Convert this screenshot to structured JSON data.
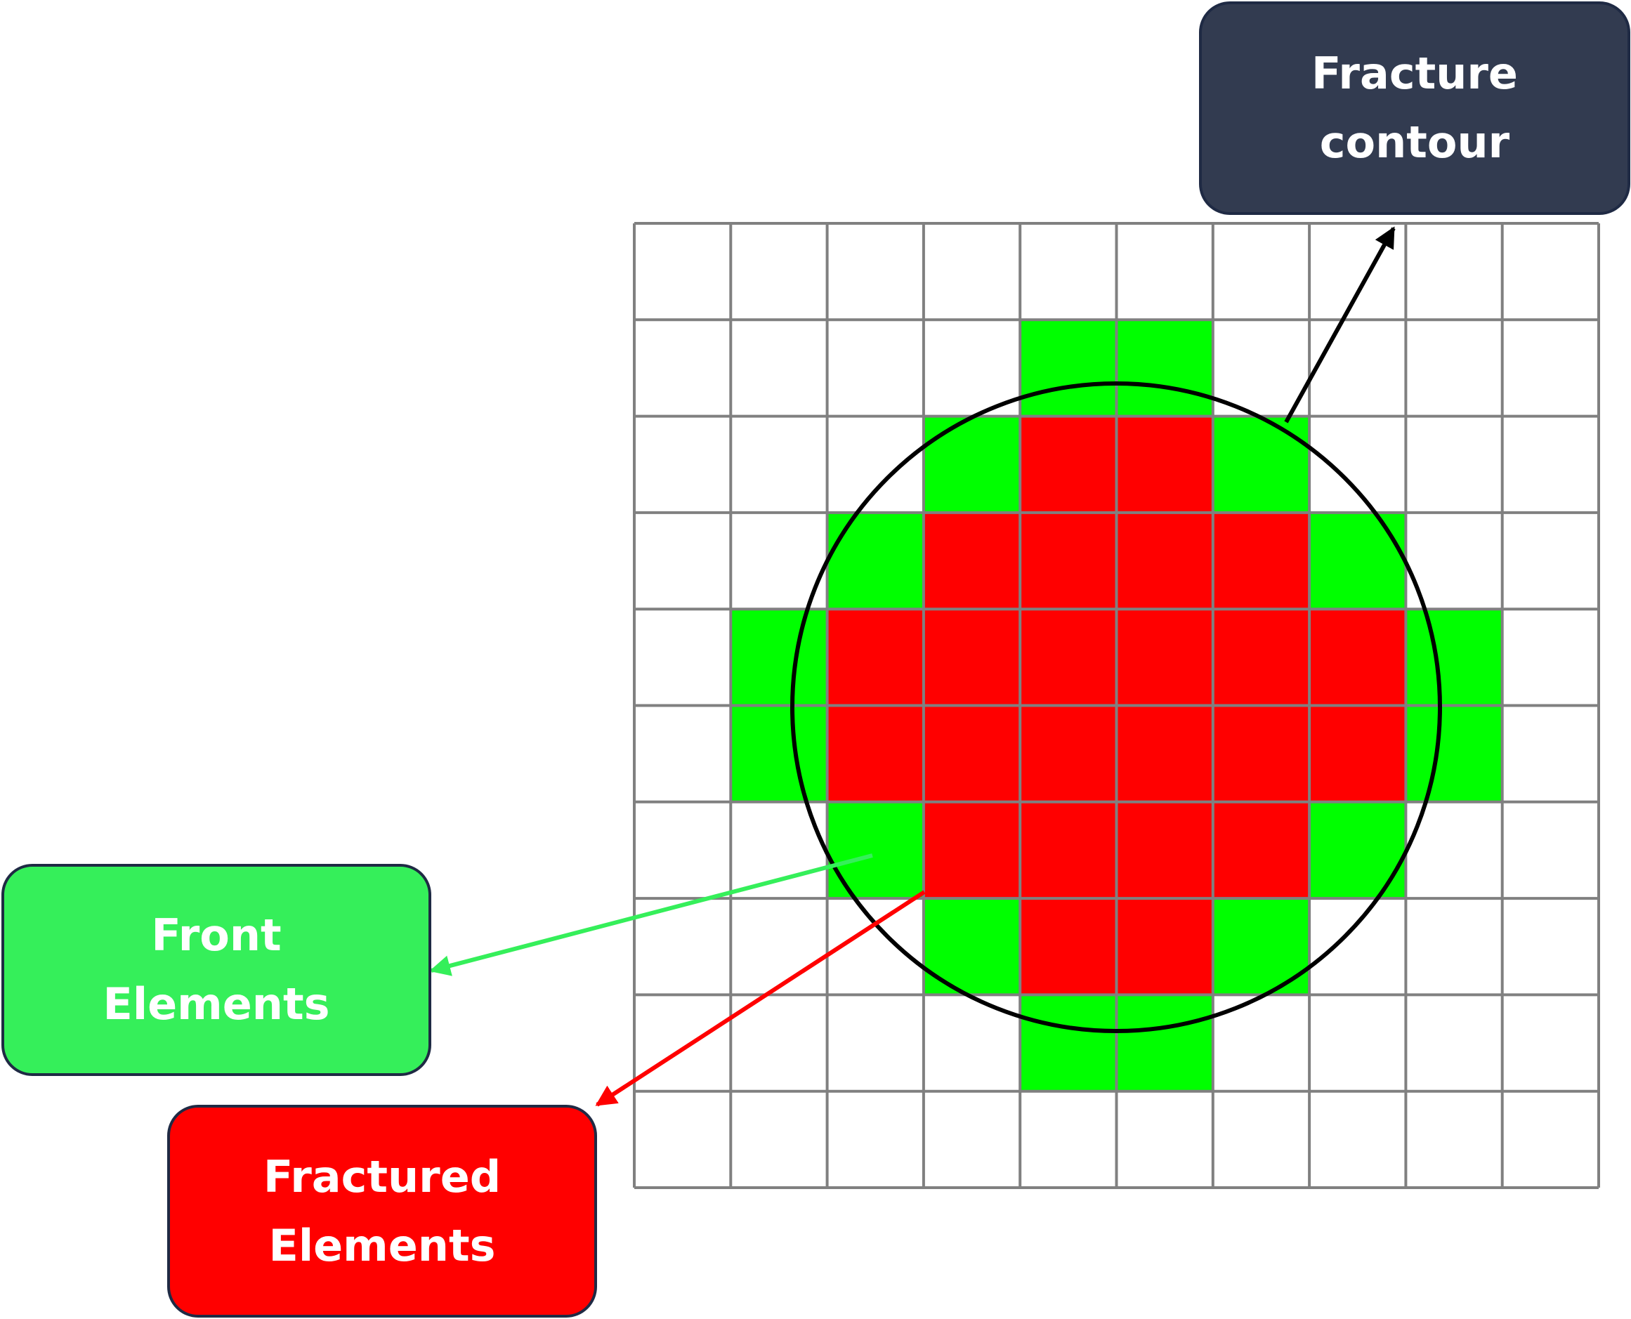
{
  "labels": {
    "fracture_contour": [
      "Fracture",
      "contour"
    ],
    "front_elements": [
      "Front",
      "Elements"
    ],
    "fractured_elements": [
      "Fractured",
      "Elements"
    ]
  },
  "grid": {
    "rows": 10,
    "cols": 10,
    "front_color": "#00ff00",
    "fractured_color": "#ff0000",
    "line_color": "#808080",
    "cells": [
      "..........",
      "....gg....",
      "...grrg...",
      "..grrrrg..",
      ".grrrrrrg.",
      ".grrrrrrg.",
      "..grrrrg..",
      "...grrg...",
      "....gg....",
      ".........."
    ]
  },
  "arrows": {
    "fracture_contour_color": "#000000",
    "front_elements_color": "#35ef5a",
    "fractured_elements_color": "#ff0000"
  }
}
